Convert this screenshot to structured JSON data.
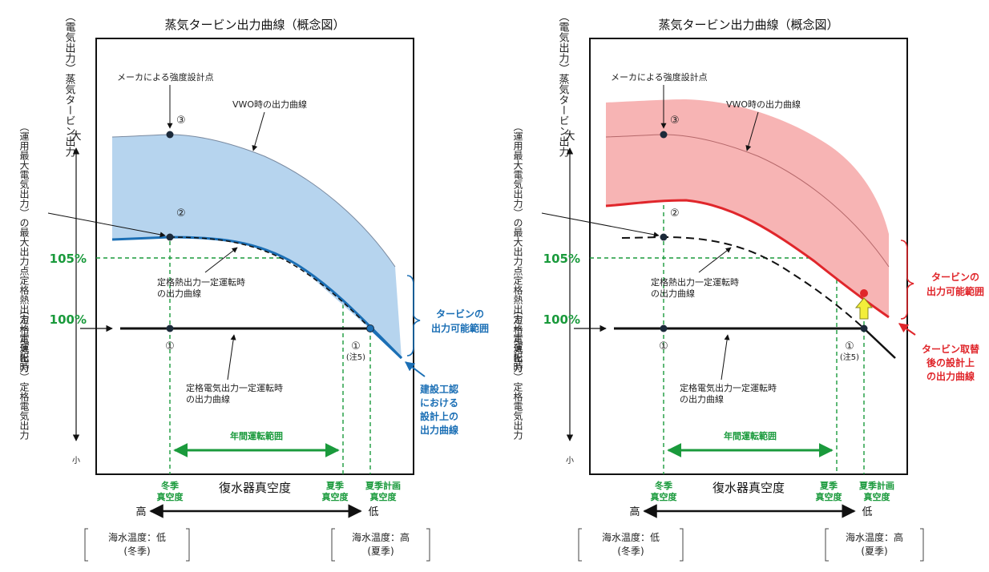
{
  "diagrams": [
    {
      "title": "蒸気タービン出力曲線（概念図）",
      "y_axis_label": "（電気出力）蒸気タービン出力",
      "y_axis_top": "大",
      "y_axis_bottom": "小",
      "left_label_max": "（運用最大電気出力）の最大出力点定格熱出力一定運転時",
      "left_label_rated": "（定格電気出力）定格電気出力",
      "pct_105": "105%",
      "pct_100": "100%",
      "design_point": "メーカによる強度設計点",
      "vwo_curve": "VWO時の出力曲線",
      "thermal_curve_1": "定格熱出力一定運転時",
      "thermal_curve_2": "の出力曲線",
      "elec_curve_1": "定格電気出力一定運転時",
      "elec_curve_2": "の出力曲線",
      "c1": "①",
      "c1n": "①",
      "note": "(注5)",
      "c2": "②",
      "c3": "③",
      "range_label": "年間運転範囲",
      "winter_1": "冬季",
      "winter_2": "真空度",
      "summer_1": "夏季",
      "summer_2": "真空度",
      "summerplan_1": "夏季計画",
      "summerplan_2": "真空度",
      "x_axis_label": "復水器真空度",
      "high": "高",
      "low": "低",
      "sea_left_1": "海水温度：低",
      "sea_left_2": "(冬季)",
      "sea_right_1": "海水温度：高",
      "sea_right_2": "(夏季)",
      "range_brace_1": "タービンの",
      "range_brace_2": "出力可能範囲",
      "design_curve": [
        "建設工認",
        "における",
        "設計上の",
        "出力曲線"
      ]
    },
    {
      "title": "蒸気タービン出力曲線（概念図）",
      "y_axis_label": "（電気出力）蒸気タービン出力",
      "y_axis_top": "大",
      "y_axis_bottom": "小",
      "left_label_max": "（運用最大電気出力）の最大出力点定格熱出力一定運転時",
      "left_label_rated": "（定格電気出力）定格電気出力",
      "pct_105": "105%",
      "pct_100": "100%",
      "design_point": "メーカによる強度設計点",
      "vwo_curve": "VWO時の出力曲線",
      "thermal_curve_1": "定格熱出力一定運転時",
      "thermal_curve_2": "の出力曲線",
      "elec_curve_1": "定格電気出力一定運転時",
      "elec_curve_2": "の出力曲線",
      "c1": "①",
      "c1n": "①",
      "note": "(注5)",
      "c2": "②",
      "c3": "③",
      "range_label": "年間運転範囲",
      "winter_1": "冬季",
      "winter_2": "真空度",
      "summer_1": "夏季",
      "summer_2": "真空度",
      "summerplan_1": "夏季計画",
      "summerplan_2": "真空度",
      "x_axis_label": "復水器真空度",
      "high": "高",
      "low": "低",
      "sea_left_1": "海水温度：低",
      "sea_left_2": "(冬季)",
      "sea_right_1": "海水温度：高",
      "sea_right_2": "(夏季)",
      "range_brace_1": "タービンの",
      "range_brace_2": "出力可能範囲",
      "design_curve": [
        "タービン取替",
        "後の設計上",
        "の出力曲線"
      ]
    }
  ],
  "colors": {
    "blue_fill": "#b6d4ee",
    "blue_line": "#1b6fb5",
    "red_fill": "#f7b4b4",
    "red_line": "#e0262b",
    "green": "#1a9a3c",
    "yellow": "#f3ee3a"
  }
}
